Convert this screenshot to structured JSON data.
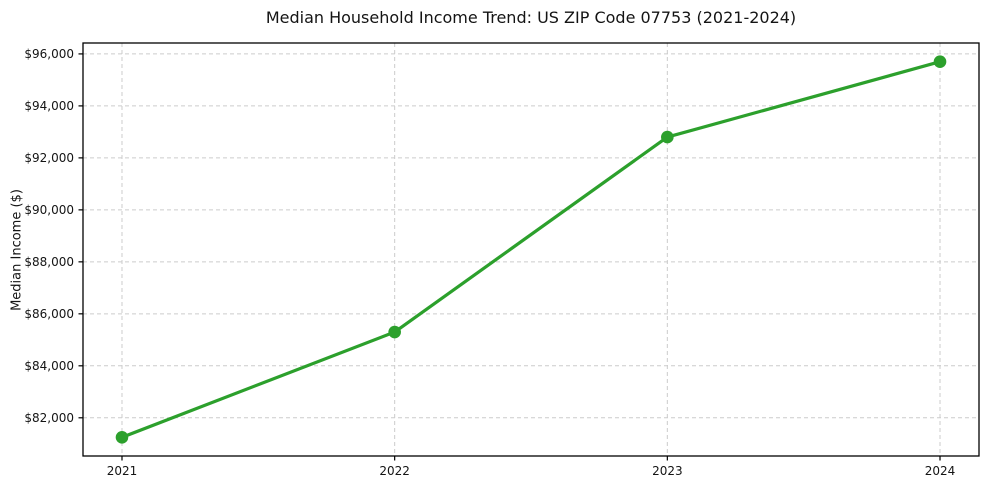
{
  "chart_data": {
    "type": "line",
    "title": "Median Household Income Trend: US ZIP Code 07753 (2021-2024)",
    "xlabel": "",
    "ylabel": "Median Income ($)",
    "x": [
      2021,
      2022,
      2023,
      2024
    ],
    "values": [
      81250,
      85300,
      92800,
      95700
    ],
    "xticks": [
      2021,
      2022,
      2023,
      2024
    ],
    "xtick_labels": [
      "2021",
      "2022",
      "2023",
      "2024"
    ],
    "yticks": [
      82000,
      84000,
      86000,
      88000,
      90000,
      92000,
      94000,
      96000
    ],
    "ytick_labels": [
      "$82,000",
      "$84,000",
      "$86,000",
      "$88,000",
      "$90,000",
      "$92,000",
      "$94,000",
      "$96,000"
    ],
    "xlim": [
      2020.857,
      2024.143
    ],
    "ylim": [
      80530,
      96420
    ],
    "grid": true,
    "legend_position": "none",
    "colors": {
      "line": "#2ca02c",
      "marker": "#2ca02c",
      "grid": "#cccccc",
      "spine": "#000000",
      "text": "#141414",
      "background": "#ffffff"
    }
  }
}
